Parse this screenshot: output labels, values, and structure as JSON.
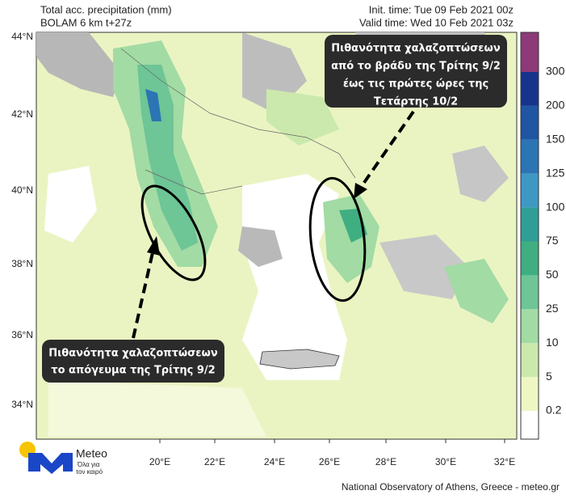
{
  "header": {
    "title": "Total acc. precipitation (mm)",
    "model": "BOLAM 6 km t+27z",
    "init_time": "Init. time: Tue 09 Feb 2021 00z",
    "valid_time": "Valid time: Wed 10 Feb 2021 03z"
  },
  "map": {
    "lat_labels": [
      "44°N",
      "42°N",
      "40°N",
      "38°N",
      "36°N",
      "34°N"
    ],
    "lon_labels": [
      "20°E",
      "22°E",
      "24°E",
      "26°E",
      "28°E",
      "30°E",
      "32°E"
    ]
  },
  "colorbar": {
    "labels": [
      "0.2",
      "5",
      "10",
      "25",
      "50",
      "75",
      "100",
      "125",
      "150",
      "200",
      "300"
    ],
    "colors": [
      "#ffffff",
      "#eef6c4",
      "#cbe9ac",
      "#a2dba4",
      "#6ec596",
      "#3fae80",
      "#2f9e96",
      "#3f98c4",
      "#2b75b4",
      "#1f55a2",
      "#17348c",
      "#8c3a78",
      "#3c0d52"
    ]
  },
  "annotations": [
    {
      "lines": [
        "Πιθανότητα χαλαζοπτώσεων",
        "από το  βράδυ της Τρίτης 9/2",
        "έως τις πρώτες ώρες της",
        "Τετάρτης 10/2"
      ]
    },
    {
      "lines": [
        "Πιθανότητα χαλαζοπτώσεων",
        "το απόγευμα της Τρίτης 9/2"
      ]
    }
  ],
  "logo": {
    "name": "Meteo",
    "tagline": [
      "Όλα για",
      "τον καιρό"
    ]
  },
  "footer": "National Observatory of Athens, Greece - meteo.gr"
}
